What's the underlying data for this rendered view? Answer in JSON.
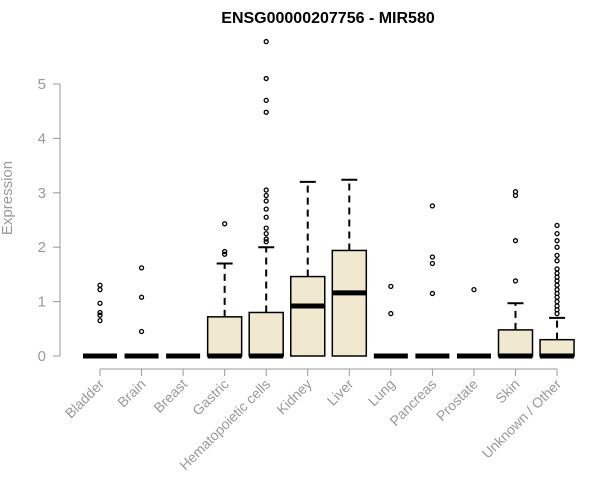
{
  "chart_data": {
    "type": "box",
    "title": "ENSG00000207756 - MIR580",
    "xlabel": "",
    "ylabel": "Expression",
    "ylim": [
      0,
      5.8
    ],
    "yticks": [
      0,
      1,
      2,
      3,
      4,
      5
    ],
    "grid": false,
    "legend": "none",
    "box_fill": "#f0e9d0",
    "categories": [
      "Bladder",
      "Brain",
      "Breast",
      "Gastric",
      "Hematopoietic cells",
      "Kidney",
      "Liver",
      "Lung",
      "Pancreas",
      "Prostate",
      "Skin",
      "Unknown / Other"
    ],
    "boxes": [
      {
        "category": "Bladder",
        "q1": 0,
        "median": 0,
        "q3": 0,
        "whisker_low": 0,
        "whisker_high": 0,
        "outliers": [
          0.65,
          0.75,
          0.8,
          0.97,
          1.22,
          1.3
        ]
      },
      {
        "category": "Brain",
        "q1": 0,
        "median": 0,
        "q3": 0,
        "whisker_low": 0,
        "whisker_high": 0,
        "outliers": [
          0.45,
          1.08,
          1.62
        ]
      },
      {
        "category": "Breast",
        "q1": 0,
        "median": 0,
        "q3": 0,
        "whisker_low": 0,
        "whisker_high": 0,
        "outliers": []
      },
      {
        "category": "Gastric",
        "q1": 0,
        "median": 0,
        "q3": 0.72,
        "whisker_low": 0,
        "whisker_high": 1.7,
        "outliers": [
          1.87,
          1.92,
          2.43
        ]
      },
      {
        "category": "Hematopoietic cells",
        "q1": 0,
        "median": 0,
        "q3": 0.8,
        "whisker_low": 0,
        "whisker_high": 2.0,
        "outliers": [
          2.1,
          2.15,
          2.25,
          2.35,
          2.55,
          2.7,
          2.85,
          2.95,
          3.05,
          4.48,
          4.7,
          5.1,
          5.78
        ]
      },
      {
        "category": "Kidney",
        "q1": 0,
        "median": 0.92,
        "q3": 1.46,
        "whisker_low": 0,
        "whisker_high": 3.2,
        "outliers": []
      },
      {
        "category": "Liver",
        "q1": 0,
        "median": 1.16,
        "q3": 1.94,
        "whisker_low": 0,
        "whisker_high": 3.24,
        "outliers": []
      },
      {
        "category": "Lung",
        "q1": 0,
        "median": 0,
        "q3": 0,
        "whisker_low": 0,
        "whisker_high": 0,
        "outliers": [
          0.78,
          1.28
        ]
      },
      {
        "category": "Pancreas",
        "q1": 0,
        "median": 0,
        "q3": 0,
        "whisker_low": 0,
        "whisker_high": 0,
        "outliers": [
          1.15,
          1.7,
          1.82,
          2.76
        ]
      },
      {
        "category": "Prostate",
        "q1": 0,
        "median": 0,
        "q3": 0,
        "whisker_low": 0,
        "whisker_high": 0,
        "outliers": [
          1.22
        ]
      },
      {
        "category": "Skin",
        "q1": 0,
        "median": 0,
        "q3": 0.48,
        "whisker_low": 0,
        "whisker_high": 0.97,
        "outliers": [
          1.38,
          2.12,
          2.95,
          3.02
        ]
      },
      {
        "category": "Unknown / Other",
        "q1": 0,
        "median": 0,
        "q3": 0.3,
        "whisker_low": 0,
        "whisker_high": 0.7,
        "outliers": [
          0.78,
          0.85,
          0.92,
          1.0,
          1.08,
          1.15,
          1.22,
          1.3,
          1.38,
          1.45,
          1.52,
          1.6,
          1.75,
          1.85,
          2.0,
          2.12,
          2.25,
          2.4
        ]
      }
    ]
  }
}
